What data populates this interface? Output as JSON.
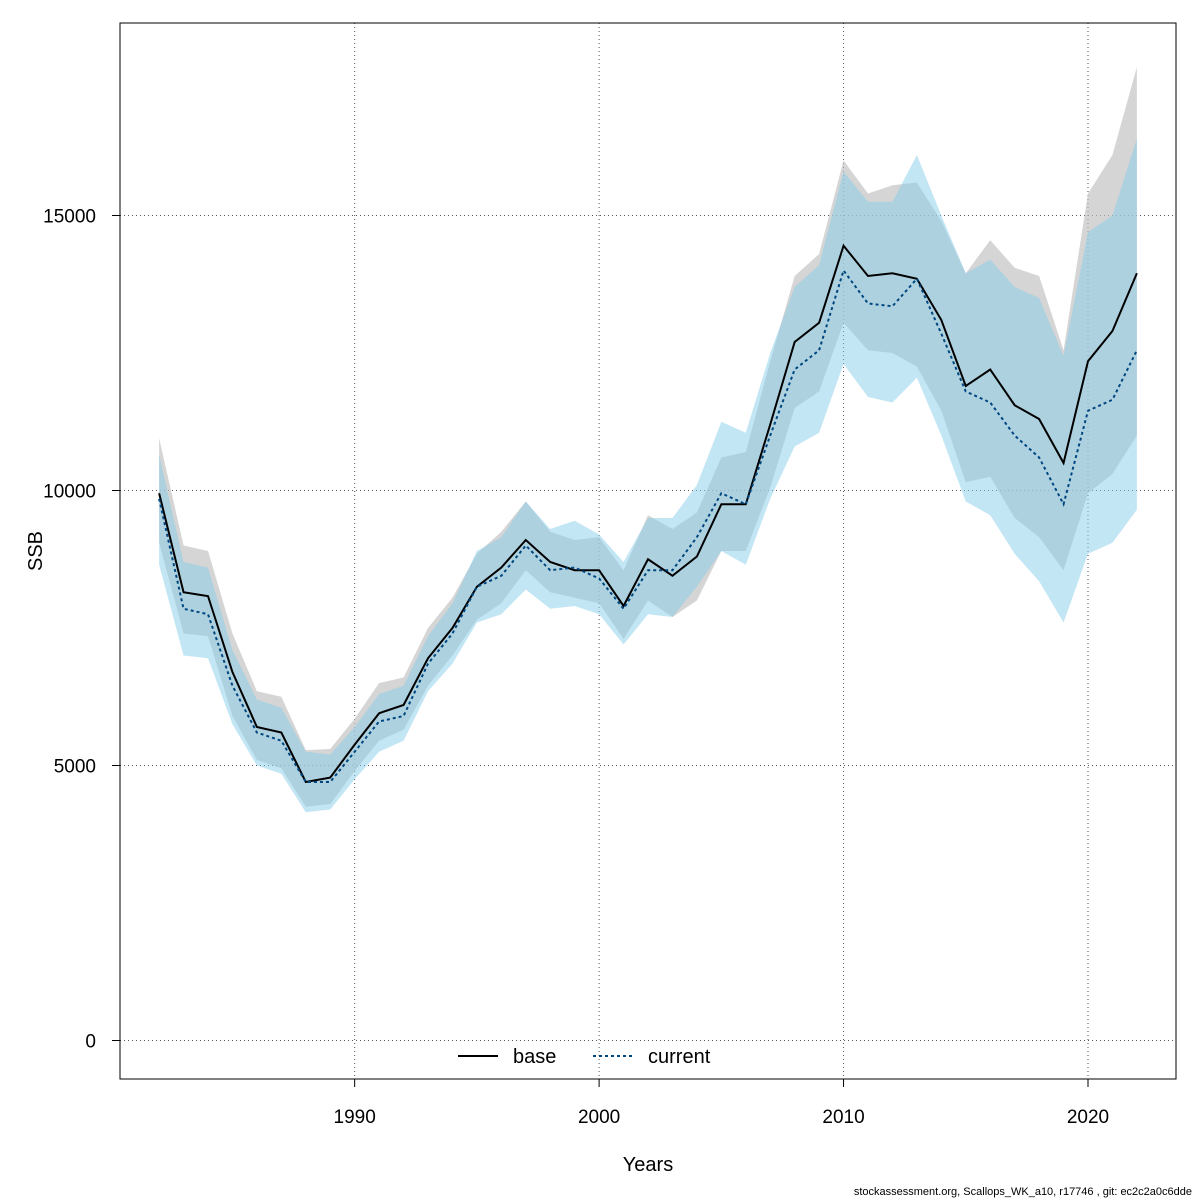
{
  "chart_data": {
    "type": "line",
    "xlabel": "Years",
    "ylabel": "SSB",
    "xlim": [
      1982,
      2022
    ],
    "ylim": [
      -700,
      18500
    ],
    "x_ticks": [
      1990,
      2000,
      2010,
      2020
    ],
    "y_ticks": [
      0,
      5000,
      10000,
      15000
    ],
    "grid": true,
    "legend_position": "bottom",
    "x": [
      1982,
      1983,
      1984,
      1985,
      1986,
      1987,
      1988,
      1989,
      1990,
      1991,
      1992,
      1993,
      1994,
      1995,
      1996,
      1997,
      1998,
      1999,
      2000,
      2001,
      2002,
      2003,
      2004,
      2005,
      2006,
      2007,
      2008,
      2009,
      2010,
      2011,
      2012,
      2013,
      2014,
      2015,
      2016,
      2017,
      2018,
      2019,
      2020,
      2021,
      2022
    ],
    "series": [
      {
        "name": "base",
        "color": "#000000",
        "line_style": "solid",
        "band_color": "#bebebe",
        "values": [
          9950,
          8150,
          8080,
          6700,
          5700,
          5600,
          4700,
          4780,
          5380,
          5950,
          6100,
          6950,
          7500,
          8250,
          8600,
          9100,
          8700,
          8550,
          8550,
          7900,
          8750,
          8450,
          8800,
          9750,
          9750,
          11200,
          12700,
          13050,
          14450,
          13900,
          13950,
          13850,
          13100,
          11900,
          12200,
          11550,
          11300,
          10500,
          12350,
          12900,
          13950
        ],
        "lower": [
          9050,
          7400,
          7350,
          5900,
          5100,
          4950,
          4250,
          4300,
          4900,
          5450,
          5650,
          6450,
          7000,
          7650,
          7950,
          8550,
          8150,
          8050,
          7950,
          7300,
          8000,
          7700,
          8000,
          8900,
          8900,
          10050,
          11500,
          11800,
          13050,
          12550,
          12500,
          12250,
          11450,
          10150,
          10250,
          9500,
          9150,
          8550,
          9950,
          10300,
          11000
        ],
        "upper": [
          10950,
          9000,
          8900,
          7400,
          6350,
          6250,
          5280,
          5300,
          5850,
          6500,
          6600,
          7500,
          8050,
          8850,
          9250,
          9800,
          9250,
          9100,
          9150,
          8550,
          9550,
          9300,
          9600,
          10600,
          10700,
          12350,
          13900,
          14300,
          16000,
          15400,
          15550,
          15600,
          14900,
          13950,
          14550,
          14050,
          13900,
          12550,
          15400,
          16100,
          17700
        ]
      },
      {
        "name": "current",
        "color": "#00467f",
        "line_style": "dotted",
        "band_color": "#87ceeb",
        "values": [
          9850,
          7850,
          7750,
          6450,
          5600,
          5450,
          4700,
          4700,
          5250,
          5800,
          5900,
          6850,
          7400,
          8250,
          8450,
          9000,
          8550,
          8600,
          8400,
          7850,
          8550,
          8550,
          9150,
          9950,
          9750,
          11000,
          12200,
          12550,
          14000,
          13400,
          13350,
          13850,
          12850,
          11800,
          11600,
          11000,
          10600,
          9750,
          11450,
          11650,
          12550
        ],
        "lower": [
          8650,
          7000,
          6950,
          5750,
          5000,
          4850,
          4150,
          4200,
          4750,
          5250,
          5450,
          6350,
          6850,
          7600,
          7750,
          8200,
          7850,
          7900,
          7750,
          7200,
          7750,
          7700,
          8250,
          8900,
          8650,
          9850,
          10800,
          11050,
          12300,
          11700,
          11600,
          12050,
          11000,
          9800,
          9550,
          8850,
          8350,
          7600,
          8850,
          9050,
          9650
        ],
        "upper": [
          10650,
          8700,
          8600,
          7100,
          6200,
          6050,
          5250,
          5200,
          5700,
          6300,
          6450,
          7350,
          7950,
          8900,
          9150,
          9800,
          9300,
          9450,
          9200,
          8700,
          9500,
          9500,
          10100,
          11250,
          11050,
          12500,
          13700,
          14100,
          15800,
          15250,
          15250,
          16100,
          15000,
          13950,
          14200,
          13700,
          13500,
          12450,
          14700,
          15000,
          16400
        ]
      }
    ]
  },
  "footer": {
    "credit": "stockassessment.org, Scallops_WK_a10, r17746 , git: ec2c2a0c6dde"
  }
}
